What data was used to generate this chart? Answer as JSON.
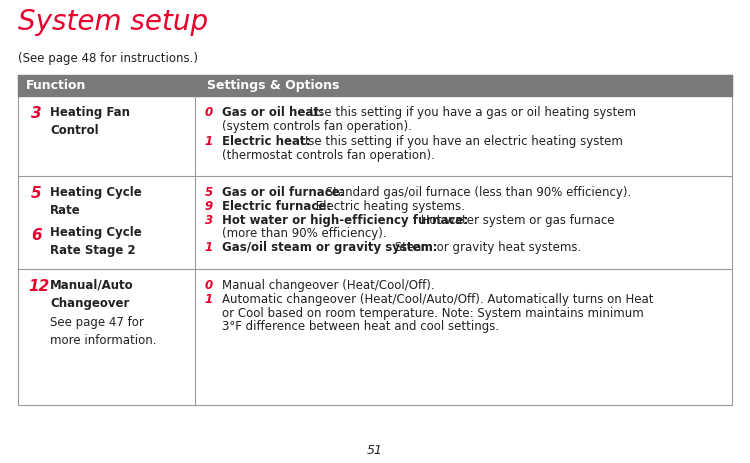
{
  "title": "System setup",
  "title_color": "#e8002d",
  "subtitle": "(See page 48 for instructions.)",
  "header_bg": "#7a7a7a",
  "header_text_color": "#ffffff",
  "header_col1": "Function",
  "header_col2": "Settings & Options",
  "page_number": "51",
  "bg_color": "#ffffff",
  "border_color": "#999999",
  "red_color": "#e8002d",
  "dark_color": "#222222",
  "figw": 7.5,
  "figh": 4.63,
  "dpi": 100
}
